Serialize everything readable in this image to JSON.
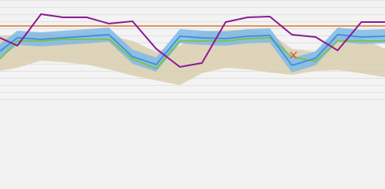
{
  "chart_data": {
    "type": "line",
    "x": [
      0,
      22,
      52,
      80,
      110,
      138,
      168,
      198,
      228,
      256,
      286,
      314,
      342,
      370,
      400,
      428,
      458,
      488
    ],
    "xlim": [
      0,
      488
    ],
    "ylim": [
      0,
      129
    ],
    "bands": [
      {
        "color": "#d8ccaa",
        "high": [
          84,
          84,
          87,
          85,
          89,
          84,
          77,
          63,
          71,
          89,
          91,
          91,
          87,
          67,
          63,
          83,
          81,
          67
        ],
        "low": [
          39,
          43,
          52,
          50,
          47,
          41,
          33,
          27,
          21,
          36,
          43,
          41,
          37,
          34,
          39,
          40,
          36,
          31
        ]
      },
      {
        "color": "#7fb8e6",
        "high": [
          73,
          90,
          88,
          90,
          92,
          94,
          66,
          56,
          92,
          90,
          89,
          92,
          93,
          55,
          64,
          94,
          91,
          92
        ],
        "low": [
          55,
          72,
          70,
          72,
          74,
          76,
          48,
          38,
          74,
          72,
          71,
          74,
          75,
          37,
          46,
          76,
          73,
          74
        ]
      }
    ],
    "series": [
      {
        "color": "#7cc242",
        "values": [
          54,
          77,
          77,
          79,
          79,
          79,
          54,
          42,
          77,
          77,
          77,
          80,
          81,
          57,
          51,
          77,
          77,
          77
        ]
      },
      {
        "color": "#3a8fd9",
        "values": [
          64,
          81,
          79,
          81,
          83,
          85,
          57,
          47,
          83,
          81,
          80,
          83,
          84,
          46,
          55,
          85,
          82,
          83
        ]
      },
      {
        "color": "#8b1a96",
        "values": [
          81,
          71,
          111,
          107,
          107,
          99,
          102,
          67,
          44,
          49,
          101,
          107,
          108,
          85,
          82,
          65,
          101,
          101
        ]
      }
    ],
    "threshold": {
      "value": 96,
      "color": "#d9772b"
    },
    "marker": {
      "x": 372,
      "y": 59,
      "color": "#d9534f"
    }
  }
}
